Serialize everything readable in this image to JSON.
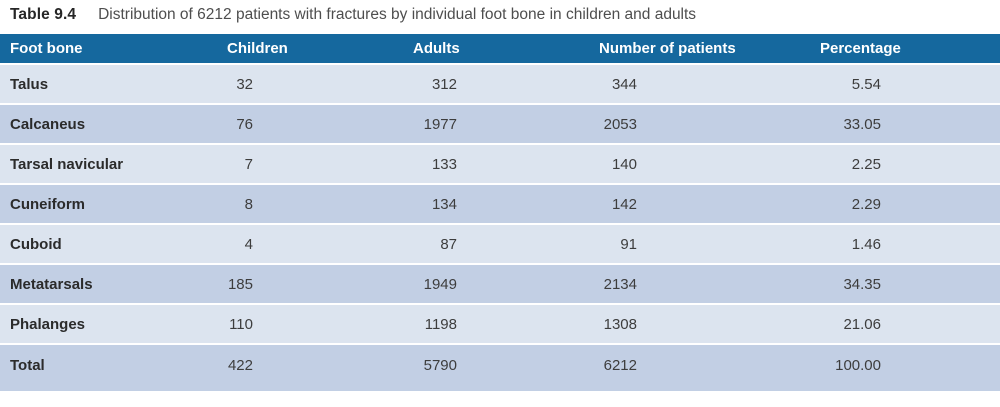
{
  "page": {
    "title_label": "Table 9.4",
    "title_text": "Distribution of 6212 patients with fractures by individual foot bone in children and adults"
  },
  "table": {
    "columns": [
      "Foot bone",
      "Children",
      "Adults",
      "Number of patients",
      "Percentage"
    ],
    "rows": [
      [
        "Talus",
        "32",
        "312",
        "344",
        "5.54"
      ],
      [
        "Calcaneus",
        "76",
        "1977",
        "2053",
        "33.05"
      ],
      [
        "Tarsal navicular",
        "7",
        "133",
        "140",
        "2.25"
      ],
      [
        "Cuneiform",
        "8",
        "134",
        "142",
        "2.29"
      ],
      [
        "Cuboid",
        "4",
        "87",
        "91",
        "1.46"
      ],
      [
        "Metatarsals",
        "185",
        "1949",
        "2134",
        "34.35"
      ],
      [
        "Phalanges",
        "110",
        "1198",
        "1308",
        "21.06"
      ],
      [
        "Total",
        "422",
        "5790",
        "6212",
        "100.00"
      ]
    ]
  },
  "colors": {
    "header_bg": "#15689E",
    "row_light": "#DCE4EF",
    "row_dark": "#C2CFE4",
    "header_text": "#FFFFFF",
    "body_text": "#3D3D3D",
    "bone_text": "#2B2B2B",
    "title_label_text": "#262626",
    "title_desc_text": "#4E4E4E"
  }
}
